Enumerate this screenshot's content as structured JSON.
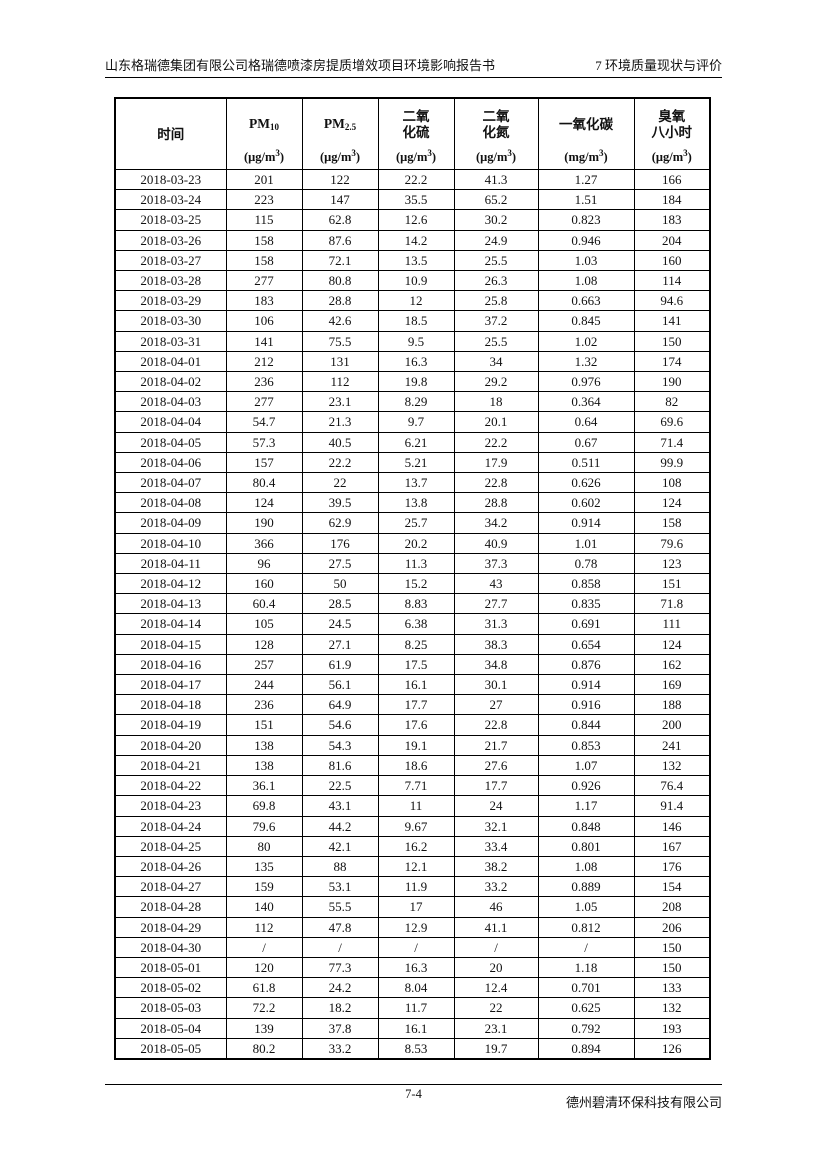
{
  "header": {
    "left": "山东格瑞德集团有限公司格瑞德喷漆房提质增效项目环境影响报告书",
    "right": "7 环境质量现状与评价"
  },
  "footer": {
    "page_number": "7-4",
    "company": "德州碧清环保科技有限公司"
  },
  "table": {
    "columns": [
      {
        "lines": [
          "时间"
        ],
        "unit": null
      },
      {
        "lines": [
          {
            "base": "PM",
            "sub": "10"
          }
        ],
        "unit": {
          "pre": "(μg/m",
          "sup": "3",
          "post": ")"
        }
      },
      {
        "lines": [
          {
            "base": "PM",
            "sub": "2.5"
          }
        ],
        "unit": {
          "pre": "(μg/m",
          "sup": "3",
          "post": ")"
        }
      },
      {
        "lines": [
          "二氧",
          "化硫"
        ],
        "unit": {
          "pre": "(μg/m",
          "sup": "3",
          "post": ")"
        }
      },
      {
        "lines": [
          "二氧",
          "化氮"
        ],
        "unit": {
          "pre": "(μg/m",
          "sup": "3",
          "post": ")"
        }
      },
      {
        "lines": [
          "一氧化碳"
        ],
        "unit": {
          "pre": "(mg/m",
          "sup": "3",
          "post": ")"
        }
      },
      {
        "lines": [
          "臭氧",
          "八小时"
        ],
        "unit": {
          "pre": "(μg/m",
          "sup": "3",
          "post": ")"
        }
      }
    ],
    "rows": [
      [
        "2018-03-23",
        "201",
        "122",
        "22.2",
        "41.3",
        "1.27",
        "166"
      ],
      [
        "2018-03-24",
        "223",
        "147",
        "35.5",
        "65.2",
        "1.51",
        "184"
      ],
      [
        "2018-03-25",
        "115",
        "62.8",
        "12.6",
        "30.2",
        "0.823",
        "183"
      ],
      [
        "2018-03-26",
        "158",
        "87.6",
        "14.2",
        "24.9",
        "0.946",
        "204"
      ],
      [
        "2018-03-27",
        "158",
        "72.1",
        "13.5",
        "25.5",
        "1.03",
        "160"
      ],
      [
        "2018-03-28",
        "277",
        "80.8",
        "10.9",
        "26.3",
        "1.08",
        "114"
      ],
      [
        "2018-03-29",
        "183",
        "28.8",
        "12",
        "25.8",
        "0.663",
        "94.6"
      ],
      [
        "2018-03-30",
        "106",
        "42.6",
        "18.5",
        "37.2",
        "0.845",
        "141"
      ],
      [
        "2018-03-31",
        "141",
        "75.5",
        "9.5",
        "25.5",
        "1.02",
        "150"
      ],
      [
        "2018-04-01",
        "212",
        "131",
        "16.3",
        "34",
        "1.32",
        "174"
      ],
      [
        "2018-04-02",
        "236",
        "112",
        "19.8",
        "29.2",
        "0.976",
        "190"
      ],
      [
        "2018-04-03",
        "277",
        "23.1",
        "8.29",
        "18",
        "0.364",
        "82"
      ],
      [
        "2018-04-04",
        "54.7",
        "21.3",
        "9.7",
        "20.1",
        "0.64",
        "69.6"
      ],
      [
        "2018-04-05",
        "57.3",
        "40.5",
        "6.21",
        "22.2",
        "0.67",
        "71.4"
      ],
      [
        "2018-04-06",
        "157",
        "22.2",
        "5.21",
        "17.9",
        "0.511",
        "99.9"
      ],
      [
        "2018-04-07",
        "80.4",
        "22",
        "13.7",
        "22.8",
        "0.626",
        "108"
      ],
      [
        "2018-04-08",
        "124",
        "39.5",
        "13.8",
        "28.8",
        "0.602",
        "124"
      ],
      [
        "2018-04-09",
        "190",
        "62.9",
        "25.7",
        "34.2",
        "0.914",
        "158"
      ],
      [
        "2018-04-10",
        "366",
        "176",
        "20.2",
        "40.9",
        "1.01",
        "79.6"
      ],
      [
        "2018-04-11",
        "96",
        "27.5",
        "11.3",
        "37.3",
        "0.78",
        "123"
      ],
      [
        "2018-04-12",
        "160",
        "50",
        "15.2",
        "43",
        "0.858",
        "151"
      ],
      [
        "2018-04-13",
        "60.4",
        "28.5",
        "8.83",
        "27.7",
        "0.835",
        "71.8"
      ],
      [
        "2018-04-14",
        "105",
        "24.5",
        "6.38",
        "31.3",
        "0.691",
        "111"
      ],
      [
        "2018-04-15",
        "128",
        "27.1",
        "8.25",
        "38.3",
        "0.654",
        "124"
      ],
      [
        "2018-04-16",
        "257",
        "61.9",
        "17.5",
        "34.8",
        "0.876",
        "162"
      ],
      [
        "2018-04-17",
        "244",
        "56.1",
        "16.1",
        "30.1",
        "0.914",
        "169"
      ],
      [
        "2018-04-18",
        "236",
        "64.9",
        "17.7",
        "27",
        "0.916",
        "188"
      ],
      [
        "2018-04-19",
        "151",
        "54.6",
        "17.6",
        "22.8",
        "0.844",
        "200"
      ],
      [
        "2018-04-20",
        "138",
        "54.3",
        "19.1",
        "21.7",
        "0.853",
        "241"
      ],
      [
        "2018-04-21",
        "138",
        "81.6",
        "18.6",
        "27.6",
        "1.07",
        "132"
      ],
      [
        "2018-04-22",
        "36.1",
        "22.5",
        "7.71",
        "17.7",
        "0.926",
        "76.4"
      ],
      [
        "2018-04-23",
        "69.8",
        "43.1",
        "11",
        "24",
        "1.17",
        "91.4"
      ],
      [
        "2018-04-24",
        "79.6",
        "44.2",
        "9.67",
        "32.1",
        "0.848",
        "146"
      ],
      [
        "2018-04-25",
        "80",
        "42.1",
        "16.2",
        "33.4",
        "0.801",
        "167"
      ],
      [
        "2018-04-26",
        "135",
        "88",
        "12.1",
        "38.2",
        "1.08",
        "176"
      ],
      [
        "2018-04-27",
        "159",
        "53.1",
        "11.9",
        "33.2",
        "0.889",
        "154"
      ],
      [
        "2018-04-28",
        "140",
        "55.5",
        "17",
        "46",
        "1.05",
        "208"
      ],
      [
        "2018-04-29",
        "112",
        "47.8",
        "12.9",
        "41.1",
        "0.812",
        "206"
      ],
      [
        "2018-04-30",
        "/",
        "/",
        "/",
        "/",
        "/",
        "150"
      ],
      [
        "2018-05-01",
        "120",
        "77.3",
        "16.3",
        "20",
        "1.18",
        "150"
      ],
      [
        "2018-05-02",
        "61.8",
        "24.2",
        "8.04",
        "12.4",
        "0.701",
        "133"
      ],
      [
        "2018-05-03",
        "72.2",
        "18.2",
        "11.7",
        "22",
        "0.625",
        "132"
      ],
      [
        "2018-05-04",
        "139",
        "37.8",
        "16.1",
        "23.1",
        "0.792",
        "193"
      ],
      [
        "2018-05-05",
        "80.2",
        "33.2",
        "8.53",
        "19.7",
        "0.894",
        "126"
      ]
    ]
  }
}
